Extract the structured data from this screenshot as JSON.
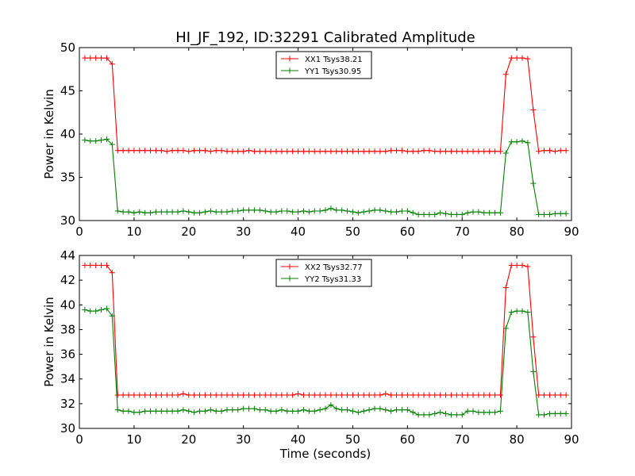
{
  "chart_data": {
    "type": "line",
    "title": "HI_JF_192, ID:32291 Calibrated Amplitude",
    "colors": {
      "red": "#ff0000",
      "green": "#008000"
    },
    "x": [
      1,
      2,
      3,
      4,
      5,
      6,
      7,
      8,
      9,
      10,
      11,
      12,
      13,
      14,
      15,
      16,
      17,
      18,
      19,
      20,
      21,
      22,
      23,
      24,
      25,
      26,
      27,
      28,
      29,
      30,
      31,
      32,
      33,
      34,
      35,
      36,
      37,
      38,
      39,
      40,
      41,
      42,
      43,
      44,
      45,
      46,
      47,
      48,
      49,
      50,
      51,
      52,
      53,
      54,
      55,
      56,
      57,
      58,
      59,
      60,
      61,
      62,
      63,
      64,
      65,
      66,
      67,
      68,
      69,
      70,
      71,
      72,
      73,
      74,
      75,
      76,
      77,
      78,
      79,
      80,
      81,
      82,
      83,
      84,
      85,
      86,
      87,
      88,
      89
    ],
    "panels": [
      {
        "xlabel": "",
        "ylabel": "Power in Kelvin",
        "xlim": [
          0,
          90
        ],
        "ylim": [
          30,
          50
        ],
        "xticks": [
          "0",
          "10",
          "20",
          "30",
          "40",
          "50",
          "60",
          "70",
          "80",
          "90"
        ],
        "yticks": [
          "30",
          "35",
          "40",
          "45",
          "50"
        ],
        "legend_position": "top-center",
        "series": [
          {
            "name": "XX1 Tsys38.21",
            "color": "#ff0000",
            "values": [
              48.8,
              48.8,
              48.8,
              48.8,
              48.8,
              48.1,
              38.1,
              38.1,
              38.1,
              38.1,
              38.1,
              38.1,
              38.1,
              38.1,
              38.1,
              38.0,
              38.1,
              38.1,
              38.1,
              38.0,
              38.1,
              38.1,
              38.1,
              38.0,
              38.1,
              38.1,
              38.0,
              38.0,
              38.0,
              38.0,
              38.1,
              38.0,
              38.0,
              38.0,
              38.0,
              38.0,
              38.0,
              38.0,
              38.0,
              38.0,
              38.0,
              38.0,
              38.0,
              38.0,
              38.0,
              38.0,
              38.0,
              38.0,
              38.0,
              38.0,
              38.0,
              38.0,
              38.0,
              38.0,
              38.0,
              38.0,
              38.1,
              38.1,
              38.1,
              38.0,
              38.0,
              38.0,
              38.1,
              38.1,
              38.0,
              38.0,
              38.0,
              38.0,
              38.0,
              38.0,
              38.0,
              38.0,
              38.0,
              38.0,
              38.0,
              38.0,
              38.0,
              46.9,
              48.8,
              48.8,
              48.8,
              48.7,
              42.8,
              38.0,
              38.1,
              38.1,
              38.0,
              38.1,
              38.1
            ]
          },
          {
            "name": "YY1 Tsys30.95",
            "color": "#008000",
            "values": [
              39.3,
              39.2,
              39.2,
              39.3,
              39.4,
              38.8,
              31.1,
              31.0,
              31.0,
              30.9,
              31.0,
              30.9,
              30.9,
              31.0,
              31.0,
              31.0,
              31.0,
              31.0,
              31.1,
              31.0,
              30.9,
              30.9,
              31.0,
              31.1,
              31.0,
              31.0,
              31.0,
              31.1,
              31.1,
              31.2,
              31.2,
              31.2,
              31.2,
              31.1,
              31.0,
              31.0,
              31.1,
              31.1,
              31.0,
              31.0,
              31.1,
              31.0,
              31.1,
              31.1,
              31.2,
              31.4,
              31.2,
              31.2,
              31.1,
              31.0,
              30.9,
              31.0,
              31.1,
              31.2,
              31.2,
              31.1,
              31.0,
              31.0,
              31.1,
              31.1,
              30.9,
              30.7,
              30.7,
              30.7,
              30.7,
              30.9,
              30.8,
              30.7,
              30.7,
              30.7,
              30.9,
              31.0,
              31.0,
              30.9,
              30.9,
              30.9,
              30.9,
              37.8,
              39.1,
              39.1,
              39.2,
              39.0,
              34.3,
              30.7,
              30.7,
              30.7,
              30.8,
              30.8,
              30.8
            ]
          }
        ]
      },
      {
        "xlabel": "Time (seconds)",
        "ylabel": "Power in Kelvin",
        "xlim": [
          0,
          90
        ],
        "ylim": [
          30,
          44
        ],
        "xticks": [
          "0",
          "10",
          "20",
          "30",
          "40",
          "50",
          "60",
          "70",
          "80",
          "90"
        ],
        "yticks": [
          "30",
          "32",
          "34",
          "36",
          "38",
          "40",
          "42",
          "44"
        ],
        "legend_position": "top-center",
        "series": [
          {
            "name": "XX2 Tsys32.77",
            "color": "#ff0000",
            "values": [
              43.2,
              43.2,
              43.2,
              43.2,
              43.2,
              42.6,
              32.7,
              32.7,
              32.7,
              32.7,
              32.7,
              32.7,
              32.7,
              32.7,
              32.7,
              32.7,
              32.7,
              32.7,
              32.8,
              32.7,
              32.7,
              32.7,
              32.7,
              32.7,
              32.7,
              32.7,
              32.7,
              32.7,
              32.7,
              32.7,
              32.7,
              32.7,
              32.7,
              32.7,
              32.7,
              32.7,
              32.7,
              32.7,
              32.7,
              32.8,
              32.7,
              32.7,
              32.7,
              32.7,
              32.7,
              32.7,
              32.7,
              32.7,
              32.7,
              32.7,
              32.7,
              32.7,
              32.7,
              32.7,
              32.7,
              32.8,
              32.7,
              32.7,
              32.7,
              32.7,
              32.7,
              32.7,
              32.7,
              32.7,
              32.7,
              32.7,
              32.7,
              32.7,
              32.7,
              32.7,
              32.7,
              32.7,
              32.7,
              32.7,
              32.7,
              32.7,
              32.7,
              41.4,
              43.2,
              43.2,
              43.2,
              43.1,
              37.4,
              32.7,
              32.7,
              32.7,
              32.7,
              32.7,
              32.7
            ]
          },
          {
            "name": "YY2 Tsys31.33",
            "color": "#008000",
            "values": [
              39.6,
              39.5,
              39.5,
              39.6,
              39.7,
              39.1,
              31.5,
              31.4,
              31.4,
              31.3,
              31.3,
              31.4,
              31.4,
              31.4,
              31.4,
              31.4,
              31.4,
              31.4,
              31.5,
              31.4,
              31.3,
              31.4,
              31.4,
              31.5,
              31.4,
              31.4,
              31.5,
              31.5,
              31.5,
              31.6,
              31.6,
              31.6,
              31.5,
              31.5,
              31.4,
              31.4,
              31.5,
              31.4,
              31.4,
              31.4,
              31.5,
              31.4,
              31.4,
              31.5,
              31.6,
              31.9,
              31.6,
              31.5,
              31.5,
              31.4,
              31.3,
              31.4,
              31.5,
              31.6,
              31.6,
              31.5,
              31.4,
              31.5,
              31.5,
              31.5,
              31.3,
              31.1,
              31.1,
              31.1,
              31.2,
              31.3,
              31.2,
              31.1,
              31.1,
              31.1,
              31.4,
              31.4,
              31.3,
              31.3,
              31.3,
              31.3,
              31.4,
              38.1,
              39.4,
              39.5,
              39.5,
              39.4,
              34.6,
              31.1,
              31.1,
              31.2,
              31.2,
              31.2,
              31.2
            ]
          }
        ]
      }
    ]
  }
}
